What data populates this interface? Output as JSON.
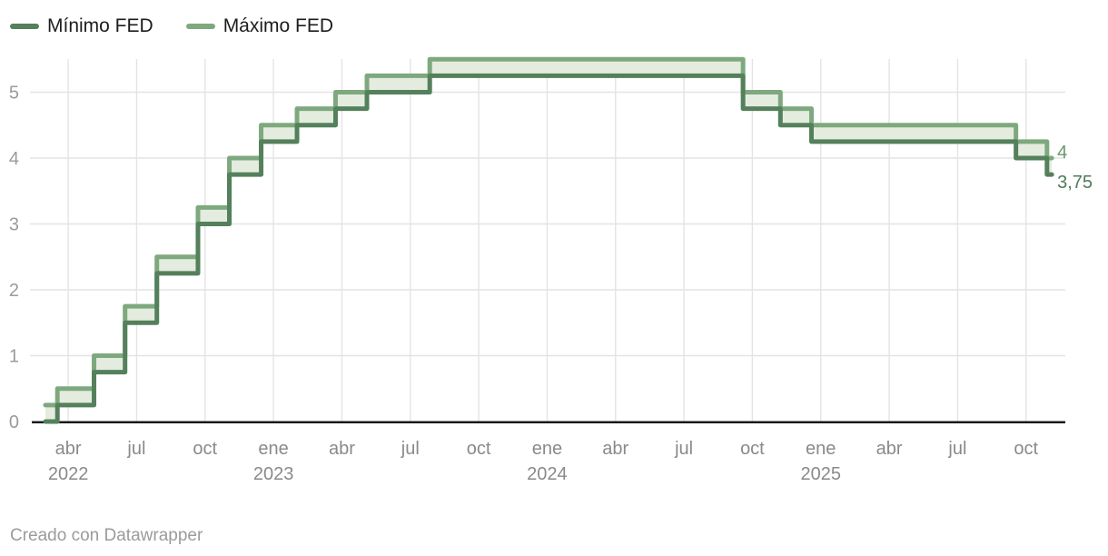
{
  "legend": {
    "items": [
      {
        "label": "Mínimo FED",
        "color": "#54805b"
      },
      {
        "label": "Máximo FED",
        "color": "#7ea97e"
      }
    ]
  },
  "footer": {
    "credit": "Creado con Datawrapper"
  },
  "chart_data": {
    "type": "line",
    "variant": "step-range-band",
    "title": "",
    "xlabel": "",
    "ylabel": "",
    "x_dates": [
      "2022-03-01",
      "2022-03-17",
      "2022-05-05",
      "2022-06-16",
      "2022-07-28",
      "2022-09-22",
      "2022-11-03",
      "2022-12-15",
      "2023-02-02",
      "2023-03-23",
      "2023-05-04",
      "2023-07-27",
      "2024-09-19",
      "2024-11-08",
      "2024-12-19",
      "2025-09-18",
      "2025-10-29"
    ],
    "x_end": "2025-11-05",
    "series": [
      {
        "name": "Mínimo FED",
        "color": "#54805b",
        "values": [
          0,
          0.25,
          0.75,
          1.5,
          2.25,
          3,
          3.75,
          4.25,
          4.5,
          4.75,
          5,
          5.25,
          4.75,
          4.5,
          4.25,
          4,
          3.75
        ],
        "end_label": "3,75",
        "end_label_color": "#507b59"
      },
      {
        "name": "Máximo FED",
        "color": "#7ea97e",
        "values": [
          0.25,
          0.5,
          1,
          1.75,
          2.5,
          3.25,
          4,
          4.5,
          4.75,
          5,
          5.25,
          5.5,
          5,
          4.75,
          4.5,
          4.25,
          4
        ],
        "end_label": "4",
        "end_label_color": "#68976c"
      }
    ],
    "band_fill": "#e4ecdf",
    "ylim": [
      0,
      5.5
    ],
    "yticks": [
      "0",
      "1",
      "2",
      "3",
      "4",
      "5"
    ],
    "xticks": [
      {
        "label": "abr",
        "year": "2022",
        "date": "2022-04-01"
      },
      {
        "label": "jul",
        "date": "2022-07-01"
      },
      {
        "label": "oct",
        "date": "2022-10-01"
      },
      {
        "label": "ene",
        "year": "2023",
        "date": "2023-01-01"
      },
      {
        "label": "abr",
        "date": "2023-04-01"
      },
      {
        "label": "jul",
        "date": "2023-07-01"
      },
      {
        "label": "oct",
        "date": "2023-10-01"
      },
      {
        "label": "ene",
        "year": "2024",
        "date": "2024-01-01"
      },
      {
        "label": "abr",
        "date": "2024-04-01"
      },
      {
        "label": "jul",
        "date": "2024-07-01"
      },
      {
        "label": "oct",
        "date": "2024-10-01"
      },
      {
        "label": "ene",
        "year": "2025",
        "date": "2025-01-01"
      },
      {
        "label": "abr",
        "date": "2025-04-01"
      },
      {
        "label": "jul",
        "date": "2025-07-01"
      },
      {
        "label": "oct",
        "date": "2025-10-01"
      }
    ],
    "grid": true,
    "legend_position": "top-left",
    "colors": {
      "grid": "#e4e4e4",
      "axis_baseline": "#1a1a1a",
      "tick_label_y": "#9b9b9b",
      "tick_label_x": "#8a8a8a"
    }
  }
}
